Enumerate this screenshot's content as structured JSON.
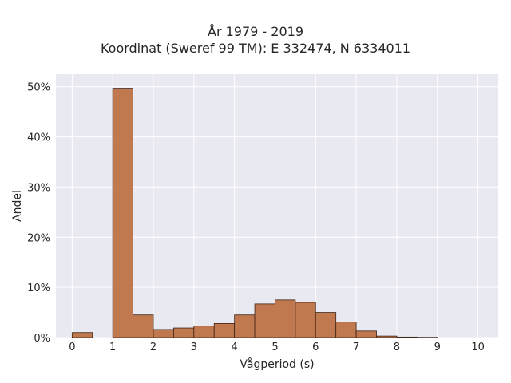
{
  "chart_data": {
    "type": "bar",
    "title_lines": [
      "År 1979 - 2019",
      "Koordinat (Sweref 99 TM): E 332474, N 6334011"
    ],
    "xlabel": "Vågperiod (s)",
    "ylabel": "Andel",
    "xlim": [
      -0.4,
      10.5
    ],
    "ylim": [
      0,
      52.5
    ],
    "x_ticks": [
      0,
      1,
      2,
      3,
      4,
      5,
      6,
      7,
      8,
      9,
      10
    ],
    "x_tick_labels": [
      "0",
      "1",
      "2",
      "3",
      "4",
      "5",
      "6",
      "7",
      "8",
      "9",
      "10"
    ],
    "y_ticks": [
      0,
      10,
      20,
      30,
      40,
      50
    ],
    "y_tick_labels": [
      "0%",
      "10%",
      "20%",
      "30%",
      "40%",
      "50%"
    ],
    "bin_width": 0.5,
    "bins": [
      {
        "start": 0.0,
        "value": 1.0
      },
      {
        "start": 1.0,
        "value": 49.7
      },
      {
        "start": 1.5,
        "value": 4.5
      },
      {
        "start": 2.0,
        "value": 1.6
      },
      {
        "start": 2.5,
        "value": 1.9
      },
      {
        "start": 3.0,
        "value": 2.3
      },
      {
        "start": 3.5,
        "value": 2.8
      },
      {
        "start": 4.0,
        "value": 4.5
      },
      {
        "start": 4.5,
        "value": 6.7
      },
      {
        "start": 5.0,
        "value": 7.5
      },
      {
        "start": 5.5,
        "value": 7.0
      },
      {
        "start": 6.0,
        "value": 5.0
      },
      {
        "start": 6.5,
        "value": 3.1
      },
      {
        "start": 7.0,
        "value": 1.3
      },
      {
        "start": 7.5,
        "value": 0.3
      },
      {
        "start": 8.0,
        "value": 0.1
      },
      {
        "start": 8.5,
        "value": 0.05
      }
    ],
    "grid": true,
    "colors": {
      "bar_fill": "#c0784e",
      "bar_edge": "#3d2416",
      "plot_background": "#e9e9f1",
      "grid": "#ffffff"
    }
  }
}
